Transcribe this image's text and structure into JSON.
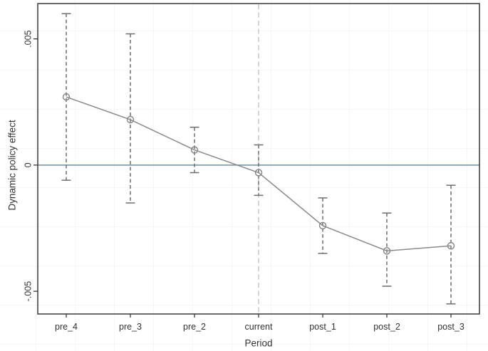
{
  "chart_data": {
    "type": "line",
    "title": "",
    "xlabel": "Period",
    "ylabel": "Dynamic policy effect",
    "categories": [
      "pre_4",
      "pre_3",
      "pre_2",
      "current",
      "post_1",
      "post_2",
      "post_3"
    ],
    "series": [
      {
        "name": "Dynamic policy effect",
        "marker": "circle-hollow",
        "values": [
          0.0027,
          0.0018,
          0.0006,
          -0.0003,
          -0.0024,
          -0.0034,
          -0.0032
        ],
        "ci_upper": [
          0.006,
          0.0052,
          0.0015,
          0.0008,
          -0.0013,
          -0.0019,
          -0.0008
        ],
        "ci_lower": [
          -0.0006,
          -0.0015,
          -0.0003,
          -0.0012,
          -0.0035,
          -0.0048,
          -0.0055
        ]
      }
    ],
    "y_ticks": [
      {
        "value": 0.005,
        "label": ".005"
      },
      {
        "value": 0,
        "label": "0"
      },
      {
        "value": -0.005,
        "label": "-.005"
      }
    ],
    "ylim": [
      -0.0059,
      0.0064
    ],
    "reference_lines": {
      "horizontal_at": 0,
      "vertical_at_category": "current",
      "vertical_style": "dashed"
    },
    "error_bar_style": "dashed-with-caps",
    "grid": "off",
    "legend": "none",
    "colors": {
      "series": "#8a8a8a",
      "ci": "#6f6f6f",
      "zero_line": "#7f9fb6",
      "reference_line": "#ababab",
      "axis": "#2b2b2b",
      "text": "#333333"
    }
  }
}
